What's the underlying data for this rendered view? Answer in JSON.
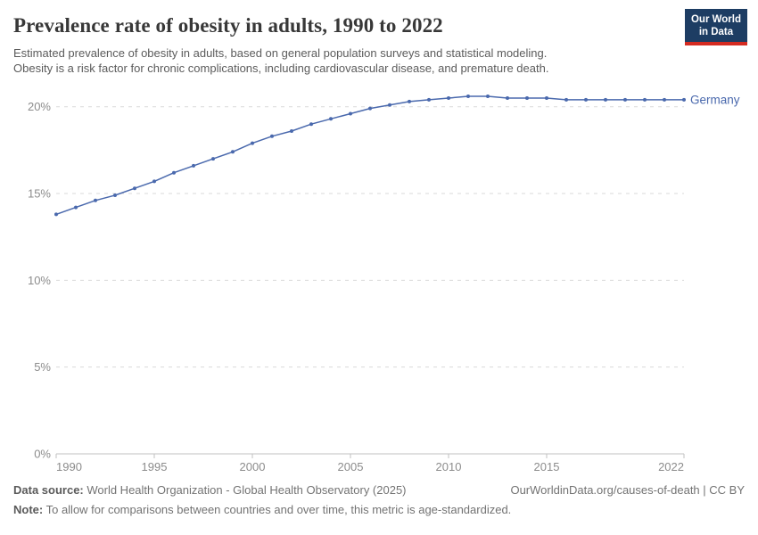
{
  "header": {
    "title": "Prevalence rate of obesity in adults, 1990 to 2022",
    "subtitle_line1": "Estimated prevalence of obesity in adults, based on general population surveys and statistical modeling.",
    "subtitle_line2": "Obesity is a risk factor for chronic complications, including cardiovascular disease, and premature death.",
    "logo": {
      "line1": "Our World",
      "line2": "in Data",
      "bg_color": "#1d3d63",
      "stripe_color": "#d42b21"
    }
  },
  "chart_data": {
    "type": "line",
    "title": "Prevalence rate of obesity in adults, 1990 to 2022",
    "x": [
      1990,
      1991,
      1992,
      1993,
      1994,
      1995,
      1996,
      1997,
      1998,
      1999,
      2000,
      2001,
      2002,
      2003,
      2004,
      2005,
      2006,
      2007,
      2008,
      2009,
      2010,
      2011,
      2012,
      2013,
      2014,
      2015,
      2016,
      2017,
      2018,
      2019,
      2020,
      2021,
      2022
    ],
    "series": [
      {
        "name": "Germany",
        "color": "#4a69ad",
        "values": [
          13.8,
          14.2,
          14.6,
          14.9,
          15.3,
          15.7,
          16.2,
          16.6,
          17.0,
          17.4,
          17.9,
          18.3,
          18.6,
          19.0,
          19.3,
          19.6,
          19.9,
          20.1,
          20.3,
          20.4,
          20.5,
          20.6,
          20.6,
          20.5,
          20.5,
          20.5,
          20.4,
          20.4,
          20.4,
          20.4,
          20.4,
          20.4,
          20.4
        ]
      }
    ],
    "xlabel": "",
    "ylabel": "",
    "xlim": [
      1990,
      2022
    ],
    "ylim": [
      0,
      21.5
    ],
    "x_ticks": [
      1990,
      1995,
      2000,
      2005,
      2010,
      2015,
      2022
    ],
    "y_ticks": [
      0,
      5,
      10,
      15,
      20
    ],
    "y_tick_suffix": "%",
    "grid": "horizontal-dashed",
    "legend_position": "end-of-line-label",
    "colors": {
      "gridline": "#d9d9d9",
      "axis": "#c0c0c0",
      "tick_label": "#8c8c8c"
    }
  },
  "footer": {
    "datasource_label": "Data source:",
    "datasource_text": " World Health Organization - Global Health Observatory (2025)",
    "link": "OurWorldinData.org/causes-of-death | CC BY",
    "note_label": "Note:",
    "note_text": " To allow for comparisons between countries and over time, this metric is age-standardized."
  }
}
